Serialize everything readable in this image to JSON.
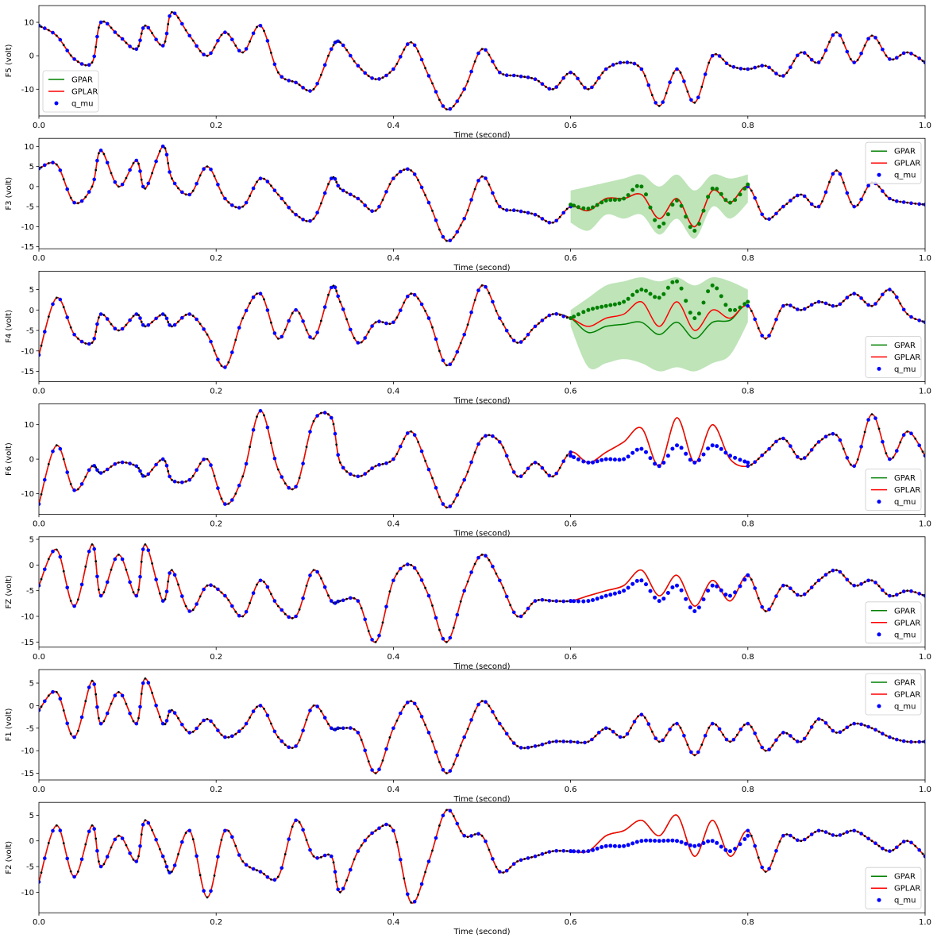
{
  "figure": {
    "xlabel": "Time (second)"
  },
  "legend_labels": {
    "gpar": "GPAR",
    "gplar": "GPLAR",
    "qmu": "q_mu"
  },
  "colors": {
    "gpar": "#008000",
    "gplar": "#ff0000",
    "qmu": "#0000ff",
    "band": "#a8dba0",
    "obs": "#000000"
  },
  "chart_data": [
    {
      "type": "line",
      "ylabel": "F5 (volt)",
      "xlim": [
        0,
        1
      ],
      "ylim": [
        -18,
        15
      ],
      "yticks": [
        -10,
        0,
        10
      ],
      "xticks": [
        0,
        0.2,
        0.4,
        0.6,
        0.8,
        1.0
      ],
      "legend": "lower-left",
      "gap": false,
      "x": [
        0,
        0.02,
        0.04,
        0.06,
        0.07,
        0.09,
        0.11,
        0.12,
        0.14,
        0.15,
        0.17,
        0.19,
        0.21,
        0.23,
        0.25,
        0.27,
        0.29,
        0.31,
        0.33,
        0.34,
        0.36,
        0.38,
        0.4,
        0.42,
        0.44,
        0.46,
        0.48,
        0.5,
        0.52,
        0.54,
        0.56,
        0.58,
        0.6,
        0.62,
        0.64,
        0.66,
        0.68,
        0.7,
        0.72,
        0.74,
        0.76,
        0.78,
        0.8,
        0.82,
        0.84,
        0.86,
        0.88,
        0.9,
        0.92,
        0.94,
        0.96,
        0.98,
        1.0
      ],
      "y": [
        9,
        6,
        -1,
        -2,
        10,
        6,
        2,
        9,
        3,
        13,
        6,
        0,
        7,
        1,
        9,
        -5,
        -8,
        -10,
        2,
        4,
        -3,
        -7,
        -4,
        4,
        -6,
        -16,
        -10,
        2,
        -5,
        -6,
        -7,
        -10,
        -5,
        -10,
        -4,
        -2,
        -4,
        -15,
        -4,
        -14,
        0,
        -3,
        -4,
        -3,
        -6,
        1,
        -2,
        7,
        -2,
        6,
        -1,
        1,
        -2
      ],
      "gplar": null,
      "qmu": null,
      "gpar_band": null
    },
    {
      "type": "line",
      "ylabel": "F3 (volt)",
      "xlim": [
        0,
        1
      ],
      "ylim": [
        -15.5,
        12
      ],
      "yticks": [
        -15,
        -10,
        -5,
        0,
        5,
        10
      ],
      "xticks": [
        0,
        0.2,
        0.4,
        0.6,
        0.8,
        1.0
      ],
      "legend": "top-right",
      "gap": true,
      "x": [
        0,
        0.02,
        0.04,
        0.06,
        0.07,
        0.09,
        0.11,
        0.12,
        0.14,
        0.15,
        0.17,
        0.19,
        0.21,
        0.23,
        0.25,
        0.27,
        0.29,
        0.31,
        0.33,
        0.34,
        0.36,
        0.38,
        0.4,
        0.42,
        0.44,
        0.46,
        0.48,
        0.5,
        0.52,
        0.54,
        0.56,
        0.58,
        0.6,
        0.62,
        0.64,
        0.66,
        0.68,
        0.7,
        0.72,
        0.74,
        0.76,
        0.78,
        0.8,
        0.82,
        0.84,
        0.86,
        0.88,
        0.9,
        0.92,
        0.94,
        0.96,
        0.98,
        1.0
      ],
      "y": [
        4.5,
        5.5,
        -4,
        0,
        9,
        0,
        6.5,
        -0.5,
        10,
        2,
        -2,
        5,
        -3,
        -5,
        2,
        -2,
        -7,
        -8,
        2,
        -0.5,
        -3,
        -6,
        2,
        4,
        -4,
        -13.5,
        -8,
        2.5,
        -5,
        -6,
        -7,
        -9,
        -5,
        -6,
        -3,
        -3,
        -2,
        -8,
        -3,
        -10,
        -1,
        -4,
        0,
        -8,
        -5,
        -2,
        -5,
        4,
        -5,
        1,
        -3,
        -4,
        -4.5
      ],
      "gplar": [
        -5,
        -6,
        -3,
        -3,
        -2,
        -8,
        -3,
        -10,
        -1,
        -4,
        0
      ],
      "qmu": [
        -4.5,
        -5.5,
        -3.5,
        -3,
        0,
        -10,
        -3.5,
        -11,
        -0.5,
        -4,
        0.5
      ],
      "gpar_band": {
        "upper": [
          -1,
          0,
          1,
          2,
          3,
          0,
          3,
          -1,
          3,
          2,
          3
        ],
        "lower": [
          -9,
          -11,
          -7,
          -8,
          -7,
          -12,
          -8,
          -13,
          -5,
          -8,
          -4
        ]
      }
    },
    {
      "type": "line",
      "ylabel": "F4 (volt)",
      "xlim": [
        0,
        1
      ],
      "ylim": [
        -17.5,
        9.5
      ],
      "yticks": [
        -15,
        -10,
        -5,
        0,
        5
      ],
      "xticks": [
        0,
        0.2,
        0.4,
        0.6,
        0.8,
        1.0
      ],
      "legend": "lower-right",
      "gap": true,
      "x": [
        0,
        0.02,
        0.04,
        0.06,
        0.07,
        0.09,
        0.11,
        0.12,
        0.14,
        0.15,
        0.17,
        0.19,
        0.21,
        0.23,
        0.25,
        0.27,
        0.29,
        0.31,
        0.33,
        0.34,
        0.36,
        0.38,
        0.4,
        0.42,
        0.44,
        0.46,
        0.48,
        0.5,
        0.52,
        0.54,
        0.56,
        0.58,
        0.6,
        0.62,
        0.64,
        0.66,
        0.68,
        0.7,
        0.72,
        0.74,
        0.76,
        0.78,
        0.8,
        0.82,
        0.84,
        0.86,
        0.88,
        0.9,
        0.92,
        0.94,
        0.96,
        0.98,
        1.0
      ],
      "y": [
        -11,
        3,
        -6,
        -8,
        -1,
        -5,
        -1,
        -4,
        -1,
        -4,
        -1,
        -6,
        -14,
        -2,
        4,
        -7,
        0,
        -7,
        5.5,
        2,
        -8,
        -3,
        -3,
        4,
        -2,
        -13.5,
        -6,
        6,
        -2,
        -8,
        -4,
        -1,
        -2,
        -1,
        0,
        -1,
        2,
        -5,
        2,
        -5,
        -1,
        -1,
        1,
        -7,
        1,
        0,
        2,
        1,
        4,
        1,
        5,
        -1,
        -3
      ],
      "gplar": [
        -2,
        -4,
        -2,
        -1,
        2,
        -4,
        2,
        -5,
        0,
        -2,
        1
      ],
      "qmu": [
        -2,
        0,
        1,
        2,
        5,
        3,
        7,
        -2,
        6,
        0,
        2
      ],
      "gpar_line": [
        -2,
        -5.5,
        -4,
        -3.5,
        -3,
        -6,
        -3,
        -7,
        -3,
        -2.5,
        1
      ],
      "gpar_band": {
        "upper": [
          0,
          3,
          6,
          7,
          8,
          7,
          8,
          6,
          8,
          7,
          5
        ],
        "lower": [
          -4,
          -14,
          -13,
          -12,
          -13,
          -15,
          -14,
          -15,
          -13,
          -11,
          -3
        ]
      }
    },
    {
      "type": "line",
      "ylabel": "F6 (volt)",
      "xlim": [
        0,
        1
      ],
      "ylim": [
        -16,
        16
      ],
      "yticks": [
        -10,
        0,
        10
      ],
      "xticks": [
        0,
        0.2,
        0.4,
        0.6,
        0.8,
        1.0
      ],
      "legend": "lower-right",
      "gap": true,
      "x": [
        0,
        0.02,
        0.04,
        0.06,
        0.07,
        0.09,
        0.11,
        0.12,
        0.14,
        0.15,
        0.17,
        0.19,
        0.21,
        0.23,
        0.25,
        0.27,
        0.29,
        0.31,
        0.33,
        0.34,
        0.36,
        0.38,
        0.4,
        0.42,
        0.44,
        0.46,
        0.48,
        0.5,
        0.52,
        0.54,
        0.56,
        0.58,
        0.6,
        0.62,
        0.64,
        0.66,
        0.68,
        0.7,
        0.72,
        0.74,
        0.76,
        0.78,
        0.8,
        0.82,
        0.84,
        0.86,
        0.88,
        0.9,
        0.92,
        0.94,
        0.96,
        0.98,
        1.0
      ],
      "y": [
        -13,
        4,
        -9,
        -2,
        -4,
        -1,
        -2,
        -5,
        0,
        -6,
        -6,
        0,
        -13,
        -5,
        14,
        -3,
        -8,
        11,
        12,
        -1,
        -5,
        -2,
        0,
        8,
        -3,
        -14,
        -6,
        6,
        5,
        -5,
        -1,
        -5,
        2,
        -1,
        2,
        5,
        9,
        -2,
        12,
        -1,
        10,
        0,
        -2,
        2,
        6,
        0,
        5,
        7,
        -2,
        13,
        0,
        8,
        1
      ],
      "gplar": [
        2,
        -1,
        2,
        5,
        9,
        -2,
        12,
        -1,
        10,
        0,
        -2
      ],
      "qmu": [
        1,
        -1,
        0,
        0,
        3,
        -2,
        4,
        -1,
        4,
        1,
        -1
      ],
      "gpar_band": null
    },
    {
      "type": "line",
      "ylabel": "FZ (volt)",
      "xlim": [
        0,
        1
      ],
      "ylim": [
        -16,
        5.5
      ],
      "yticks": [
        -15,
        -10,
        -5,
        0,
        5
      ],
      "xticks": [
        0,
        0.2,
        0.4,
        0.6,
        0.8,
        1.0
      ],
      "legend": "lower-right",
      "gap": true,
      "x": [
        0,
        0.02,
        0.04,
        0.06,
        0.07,
        0.09,
        0.11,
        0.12,
        0.14,
        0.15,
        0.17,
        0.19,
        0.21,
        0.23,
        0.25,
        0.27,
        0.29,
        0.31,
        0.33,
        0.34,
        0.36,
        0.38,
        0.4,
        0.42,
        0.44,
        0.46,
        0.48,
        0.5,
        0.52,
        0.54,
        0.56,
        0.58,
        0.6,
        0.62,
        0.64,
        0.66,
        0.68,
        0.7,
        0.72,
        0.74,
        0.76,
        0.78,
        0.8,
        0.82,
        0.84,
        0.86,
        0.88,
        0.9,
        0.92,
        0.94,
        0.96,
        0.98,
        1.0
      ],
      "y": [
        -4,
        3,
        -8,
        4,
        -6,
        2,
        -6,
        4,
        -7,
        -1,
        -9,
        -4,
        -6,
        -10,
        -3,
        -8,
        -10,
        -1,
        -7,
        -7,
        -7,
        -15,
        -3,
        0,
        -6,
        -15,
        -5,
        2,
        -3,
        -10,
        -7,
        -7,
        -7,
        -6,
        -5,
        -4,
        -1,
        -6,
        -2,
        -8,
        -3,
        -7,
        -2,
        -9,
        -4,
        -6,
        -3,
        -1,
        -4,
        -3,
        -6,
        -5,
        -6
      ],
      "gplar": [
        -7,
        -6,
        -5,
        -4,
        -1,
        -6,
        -2,
        -8,
        -3,
        -7,
        -2
      ],
      "qmu": [
        -7,
        -7,
        -6,
        -5,
        -3,
        -7,
        -4,
        -9,
        -4,
        -6,
        -2
      ],
      "gpar_band": null
    },
    {
      "type": "line",
      "ylabel": "F1 (volt)",
      "xlim": [
        0,
        1
      ],
      "ylim": [
        -16.5,
        8
      ],
      "yticks": [
        -15,
        -10,
        -5,
        0,
        5
      ],
      "xticks": [
        0,
        0.2,
        0.4,
        0.6,
        0.8,
        1.0
      ],
      "legend": "top-right",
      "gap": false,
      "x": [
        0,
        0.02,
        0.04,
        0.06,
        0.07,
        0.09,
        0.11,
        0.12,
        0.14,
        0.15,
        0.17,
        0.19,
        0.21,
        0.23,
        0.25,
        0.27,
        0.29,
        0.31,
        0.33,
        0.34,
        0.36,
        0.38,
        0.4,
        0.42,
        0.44,
        0.46,
        0.48,
        0.5,
        0.52,
        0.54,
        0.56,
        0.58,
        0.6,
        0.62,
        0.64,
        0.66,
        0.68,
        0.7,
        0.72,
        0.74,
        0.76,
        0.78,
        0.8,
        0.82,
        0.84,
        0.86,
        0.88,
        0.9,
        0.92,
        0.94,
        0.96,
        0.98,
        1.0
      ],
      "y": [
        -1,
        3,
        -7,
        5.5,
        -4,
        3,
        -4,
        6,
        -4,
        -1,
        -6,
        -3,
        -7,
        -5,
        0,
        -7,
        -9,
        0,
        -5,
        -5,
        -6,
        -15,
        -5,
        1,
        -6,
        -15,
        -7,
        1,
        -4,
        -9,
        -9,
        -8,
        -8,
        -8,
        -5,
        -7,
        -2,
        -8,
        -4,
        -11,
        -4,
        -8,
        -4,
        -10,
        -6,
        -8,
        -3,
        -6,
        -4,
        -5,
        -7,
        -8,
        -8
      ],
      "gplar": null,
      "qmu": null,
      "gpar_band": null
    },
    {
      "type": "line",
      "ylabel": "F2 (volt)",
      "xlim": [
        0,
        1
      ],
      "ylim": [
        -14,
        7.5
      ],
      "yticks": [
        -10,
        -5,
        0,
        5
      ],
      "xticks": [
        0,
        0.2,
        0.4,
        0.6,
        0.8,
        1.0
      ],
      "legend": "lower-right",
      "gap": true,
      "x": [
        0,
        0.02,
        0.04,
        0.06,
        0.07,
        0.09,
        0.11,
        0.12,
        0.14,
        0.15,
        0.17,
        0.19,
        0.21,
        0.23,
        0.25,
        0.27,
        0.29,
        0.31,
        0.33,
        0.34,
        0.36,
        0.38,
        0.4,
        0.42,
        0.44,
        0.46,
        0.48,
        0.5,
        0.52,
        0.54,
        0.56,
        0.58,
        0.6,
        0.62,
        0.64,
        0.66,
        0.68,
        0.7,
        0.72,
        0.74,
        0.76,
        0.78,
        0.8,
        0.82,
        0.84,
        0.86,
        0.88,
        0.9,
        0.92,
        0.94,
        0.96,
        0.98,
        1.0
      ],
      "y": [
        -8,
        3,
        -7,
        3,
        -5,
        1,
        -4,
        4,
        -3,
        -6,
        2,
        -11,
        2,
        -4,
        -6,
        -7,
        4,
        -3,
        -3,
        -10,
        -2,
        2,
        2,
        -12,
        -4,
        6,
        1,
        1,
        -6,
        -4,
        -3,
        -2,
        -2,
        -2,
        1,
        2,
        4,
        1,
        5,
        -3,
        4,
        -3,
        2,
        -6,
        1,
        0,
        2,
        1,
        2,
        0,
        -2,
        0,
        -3
      ],
      "gplar": [
        -2,
        -2,
        1,
        2,
        4,
        1,
        5,
        -3,
        4,
        -3,
        2
      ],
      "qmu": [
        -2,
        -2,
        -1,
        -1,
        0,
        0,
        0,
        -1,
        0,
        -2,
        1
      ],
      "gpar_band": null
    }
  ]
}
